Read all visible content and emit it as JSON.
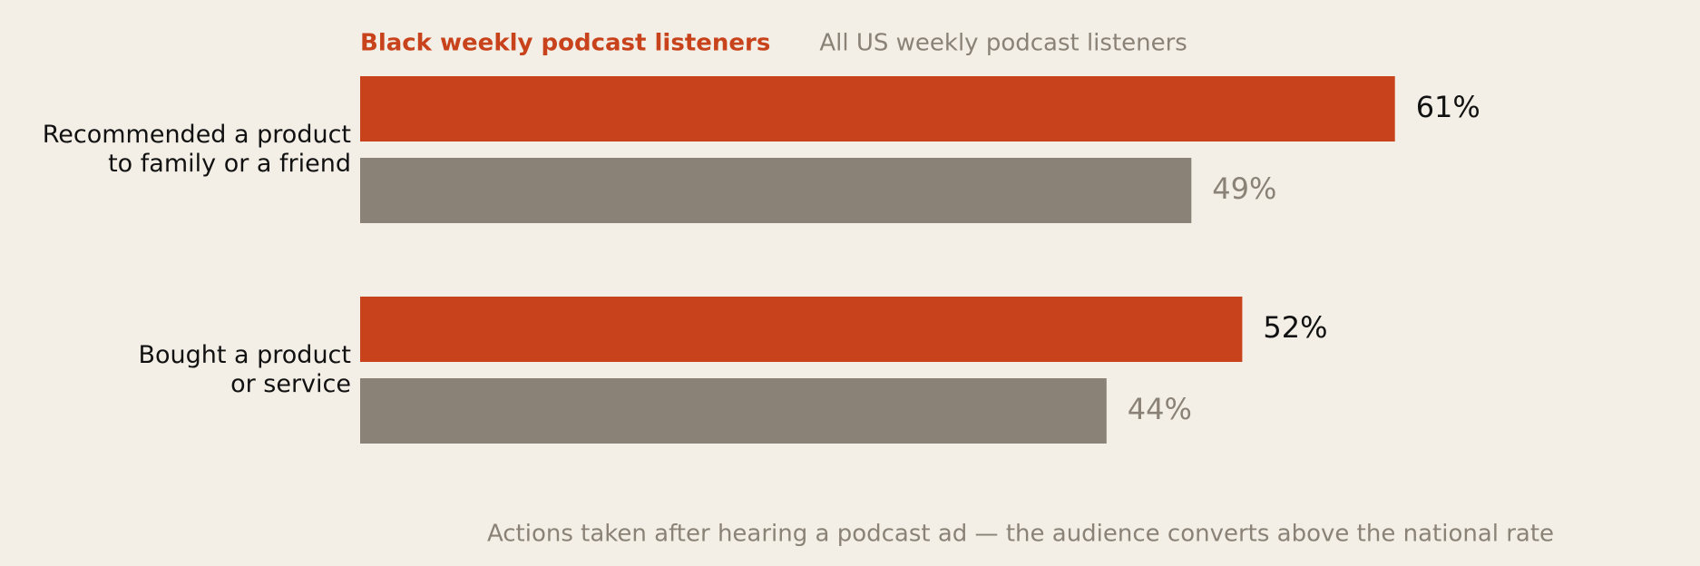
{
  "chart_data": {
    "type": "bar",
    "orientation": "horizontal",
    "caption": "Actions taken after hearing a podcast ad — the audience converts above the national rate",
    "categories": [
      "Recommended a product\nto family or a friend",
      "Bought a product\nor service"
    ],
    "series": [
      {
        "name": "Black weekly podcast listeners",
        "color": "#c8431c",
        "values": [
          61,
          52
        ],
        "value_labels": [
          "61%",
          "52%"
        ]
      },
      {
        "name": "All US weekly podcast listeners",
        "color": "#8a8276",
        "values": [
          49,
          44
        ],
        "value_labels": [
          "49%",
          "44%"
        ]
      }
    ]
  }
}
